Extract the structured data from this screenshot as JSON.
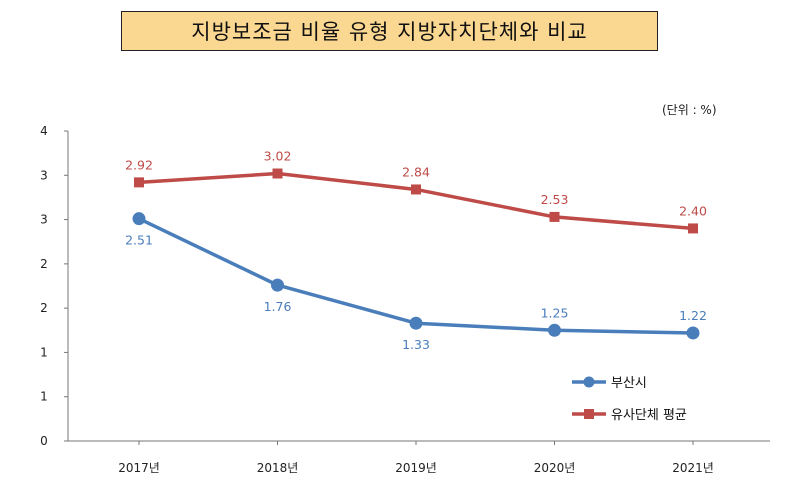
{
  "title": "지방보조금 비율 유형 지방자치단체와 비교",
  "unit_label": "(단위 : %)",
  "chart_data": {
    "type": "line",
    "title": "지방보조금 비율 유형 지방자치단체와 비교",
    "xlabel": "",
    "ylabel": "",
    "categories": [
      "2017년",
      "2018년",
      "2019년",
      "2020년",
      "2021년"
    ],
    "y_tick_labels": [
      "0",
      "1",
      "1",
      "2",
      "2",
      "3",
      "3",
      "4"
    ],
    "ylim": [
      0,
      3.5
    ],
    "grid": false,
    "legend_position": "bottom-right",
    "series": [
      {
        "name": "부산시",
        "values": [
          2.51,
          1.76,
          1.33,
          1.25,
          1.22
        ],
        "labels": [
          "2.51",
          "1.76",
          "1.33",
          "1.25",
          "1.22"
        ],
        "color": "#4a7ebb",
        "marker": "circle",
        "label_position": [
          "below",
          "below",
          "below",
          "above",
          "above"
        ]
      },
      {
        "name": "유사단체 평균",
        "values": [
          2.92,
          3.02,
          2.84,
          2.53,
          2.4
        ],
        "labels": [
          "2.92",
          "3.02",
          "2.84",
          "2.53",
          "2.40"
        ],
        "color": "#be4b48",
        "marker": "square",
        "label_position": [
          "above",
          "above",
          "above",
          "above",
          "above"
        ]
      }
    ]
  }
}
